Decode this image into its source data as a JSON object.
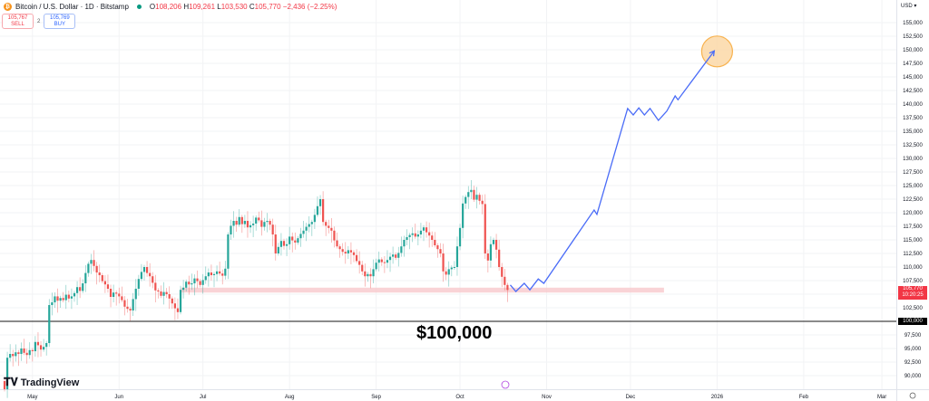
{
  "header": {
    "symbol_icon": "bitcoin-icon",
    "title": "Bitcoin / U.S. Dollar · 1D · Bitstamp",
    "open_label": "O",
    "open": "108,206",
    "high_label": "H",
    "high": "109,261",
    "low_label": "L",
    "low": "103,530",
    "close_label": "C",
    "close": "105,770",
    "change": "−2,436 (−2.25%)",
    "sell_price": "105,767",
    "sell_label": "SELL",
    "spread": "2",
    "buy_price": "105,769",
    "buy_label": "BUY"
  },
  "price_axis": {
    "currency": "USD",
    "ticks": [
      "155,000",
      "152,500",
      "150,000",
      "147,500",
      "145,000",
      "142,500",
      "140,000",
      "137,500",
      "135,000",
      "132,500",
      "130,000",
      "127,500",
      "125,000",
      "122,500",
      "120,000",
      "117,500",
      "115,000",
      "112,500",
      "110,000",
      "107,500",
      "102,500",
      "97,500",
      "95,000",
      "92,500",
      "90,000"
    ],
    "last_price": "105,770",
    "countdown": "10:20:25",
    "level_label": "100,000"
  },
  "time_axis": {
    "ticks": [
      {
        "label": "May",
        "date": "2025-05-01"
      },
      {
        "label": "Jun",
        "date": "2025-06-01"
      },
      {
        "label": "Jul",
        "date": "2025-07-01"
      },
      {
        "label": "Aug",
        "date": "2025-08-01"
      },
      {
        "label": "Sep",
        "date": "2025-09-01"
      },
      {
        "label": "Oct",
        "date": "2025-10-01"
      },
      {
        "label": "Nov",
        "date": "2025-11-01"
      },
      {
        "label": "Dec",
        "date": "2025-12-01"
      },
      {
        "label": "2026",
        "date": "2026-01-01"
      },
      {
        "label": "Feb",
        "date": "2026-02-01"
      },
      {
        "label": "Mar",
        "date": "2026-03-01"
      }
    ]
  },
  "annotation": {
    "level_text": "$100,000"
  },
  "branding": {
    "logo": "TradingView"
  },
  "colors": {
    "up": "#26a69a",
    "down": "#ef5350",
    "projection": "#4a6cf7",
    "support_zone": "#f8c8cc",
    "target": "#f7a530",
    "level_line": "#444444"
  },
  "chart_data": {
    "type": "candlestick",
    "ylim": [
      88000,
      157500
    ],
    "grid": true,
    "first_date": "2025-04-21",
    "closes": [
      87500,
      93300,
      94000,
      93600,
      94300,
      94000,
      95000,
      94200,
      93800,
      94700,
      94500,
      96200,
      95600,
      94800,
      95300,
      96000,
      103000,
      103500,
      104600,
      103800,
      104300,
      103900,
      104900,
      104200,
      104600,
      105200,
      106300,
      105600,
      107000,
      108900,
      110600,
      111300,
      110200,
      109000,
      108500,
      107400,
      106800,
      106000,
      104500,
      105300,
      105100,
      104600,
      103900,
      102700,
      102300,
      102000,
      104100,
      106000,
      107800,
      109100,
      110000,
      108900,
      108300,
      107100,
      105700,
      105500,
      104700,
      105400,
      105000,
      104200,
      103300,
      102400,
      101700,
      105800,
      106200,
      107300,
      106800,
      107000,
      107900,
      107400,
      106700,
      107600,
      108300,
      109000,
      108500,
      108700,
      109200,
      108800,
      108400,
      109700,
      116000,
      117600,
      118500,
      117800,
      119200,
      117900,
      118500,
      117300,
      117700,
      118000,
      119100,
      118600,
      117400,
      118300,
      118500,
      117800,
      116000,
      112500,
      113700,
      114800,
      113900,
      114200,
      115600,
      114900,
      114500,
      115300,
      116100,
      116700,
      117400,
      117900,
      118300,
      119600,
      121200,
      122500,
      118300,
      117600,
      117200,
      116700,
      114900,
      113800,
      113300,
      112800,
      112500,
      113100,
      112700,
      112200,
      111100,
      110400,
      109200,
      108300,
      108700,
      108300,
      109600,
      110800,
      111400,
      110900,
      110800,
      111300,
      111900,
      112300,
      111700,
      112600,
      113800,
      115000,
      115500,
      115900,
      116200,
      115600,
      116000,
      116700,
      117300,
      116400,
      115800,
      115000,
      114000,
      113300,
      112500,
      109200,
      108600,
      109600,
      109900,
      110000,
      113800,
      117200,
      121700,
      122900,
      123800,
      124200,
      122400,
      123300,
      122200,
      121600,
      112500,
      111200,
      114200,
      115000,
      113200,
      110000,
      108200,
      106700,
      105770
    ],
    "projection": [
      [
        "2025-10-19",
        106700
      ],
      [
        "2025-10-21",
        105500
      ],
      [
        "2025-10-24",
        107000
      ],
      [
        "2025-10-26",
        105800
      ],
      [
        "2025-10-29",
        107800
      ],
      [
        "2025-10-31",
        107000
      ],
      [
        "2025-11-18",
        120500
      ],
      [
        "2025-11-19",
        119700
      ],
      [
        "2025-11-30",
        139200
      ],
      [
        "2025-12-02",
        138000
      ],
      [
        "2025-12-04",
        139300
      ],
      [
        "2025-12-06",
        138000
      ],
      [
        "2025-12-08",
        139200
      ],
      [
        "2025-12-11",
        137000
      ],
      [
        "2025-12-14",
        138700
      ],
      [
        "2025-12-17",
        141500
      ],
      [
        "2025-12-18",
        140800
      ],
      [
        "2025-12-31",
        149800
      ]
    ],
    "target": {
      "date": "2026-01-01",
      "price": 149700
    },
    "support_zone": {
      "from": "2025-06-23",
      "to": "2025-12-13",
      "low": 105300,
      "high": 106200
    },
    "horizontal_level": 100000
  }
}
